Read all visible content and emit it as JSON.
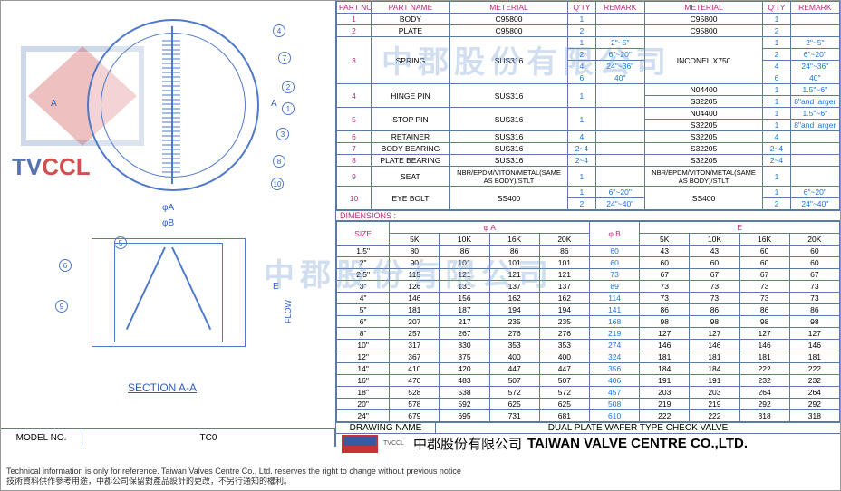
{
  "model": {
    "label": "MODEL NO.",
    "value": "TC0"
  },
  "drawing_name": {
    "label": "DRAWING NAME",
    "value": "DUAL PLATE WAFER TYPE CHECK VALVE"
  },
  "company": {
    "logo_sub": "TVCCL",
    "chinese": "中郡股份有限公司",
    "english": "TAIWAN VALVE CENTRE CO.,LTD."
  },
  "footnotes": {
    "en": "Technical information is only for reference. Taiwan Valves Centre Co., Ltd. reserves the right to change without previous notice",
    "zh": "技術資料供作參考用途，中郡公司保留對產品設計的更改，不另行通知的權利。"
  },
  "section_label": "SECTION A-A",
  "flow_label": "FLOW",
  "phiA": "φA",
  "phiB": "φB",
  "Alab": "A",
  "Elab": "E",
  "watermark": {
    "line1": "中郡股份有限公司",
    "brand_a": "TV",
    "brand_b": "CCL"
  },
  "parts_headers": {
    "part_no": "PART NO.",
    "part_name": "PART NAME",
    "material": "METERIAL",
    "qty": "Q'TY",
    "remark": "REMARK"
  },
  "parts": [
    {
      "no": "1",
      "name": "BODY",
      "m1": "C95800",
      "q1": "1",
      "r1": "",
      "m2": "C95800",
      "q2": "1",
      "r2": ""
    },
    {
      "no": "2",
      "name": "PLATE",
      "m1": "C95800",
      "q1": "2",
      "r1": "",
      "m2": "C95800",
      "q2": "2",
      "r2": ""
    }
  ],
  "spring": {
    "no": "3",
    "name": "SPRING",
    "m1": "SUS316",
    "m2": "INCONEL X750",
    "rows1": [
      {
        "q": "1",
        "r": "2\"~5\""
      },
      {
        "q": "2",
        "r": "6\"~20\""
      },
      {
        "q": "4",
        "r": "24\"~36\""
      },
      {
        "q": "6",
        "r": "40\""
      }
    ],
    "rows2": [
      {
        "q": "1",
        "r": "2\"~5\""
      },
      {
        "q": "2",
        "r": "6\"~20\""
      },
      {
        "q": "4",
        "r": "24\"~36\""
      },
      {
        "q": "6",
        "r": "40\""
      }
    ]
  },
  "hinge": {
    "no": "4",
    "name": "HINGE PIN",
    "m1": "SUS316",
    "q1": "1",
    "r1": "",
    "rows2": [
      {
        "m": "N04400",
        "q": "1",
        "r": "1.5\"~6\""
      },
      {
        "m": "S32205",
        "q": "1",
        "r": "8\"and larger"
      }
    ]
  },
  "stop": {
    "no": "5",
    "name": "STOP PIN",
    "m1": "SUS316",
    "q1": "1",
    "r1": "",
    "rows2": [
      {
        "m": "N04400",
        "q": "1",
        "r": "1.5\"~6\""
      },
      {
        "m": "S32205",
        "q": "1",
        "r": "8\"and larger"
      }
    ]
  },
  "simple": [
    {
      "no": "6",
      "name": "RETAINER",
      "m1": "SUS316",
      "q1": "4",
      "r1": "",
      "m2": "S32205",
      "q2": "4",
      "r2": ""
    },
    {
      "no": "7",
      "name": "BODY BEARING",
      "m1": "SUS316",
      "q1": "2~4",
      "r1": "",
      "m2": "S32205",
      "q2": "2~4",
      "r2": ""
    },
    {
      "no": "8",
      "name": "PLATE BEARING",
      "m1": "SUS316",
      "q1": "2~4",
      "r1": "",
      "m2": "S32205",
      "q2": "2~4",
      "r2": ""
    },
    {
      "no": "9",
      "name": "SEAT",
      "m1": "NBR/EPDM/VITON/METAL(SAME AS BODY)/STLT",
      "q1": "1",
      "r1": "",
      "m2": "NBR/EPDM/VITON/METAL(SAME AS BODY)/STLT",
      "q2": "1",
      "r2": ""
    }
  ],
  "eyebolt": {
    "no": "10",
    "name": "EYE BOLT",
    "m1": "SS400",
    "m2": "SS400",
    "rows": [
      {
        "q": "1",
        "r": "6\"~20\""
      },
      {
        "q": "2",
        "r": "24\"~40\""
      }
    ]
  },
  "dim_label": "DIMENSIONS :",
  "dim_headers": {
    "size": "SIZE",
    "phiA": "φ A",
    "phiB": "φ B",
    "E": "E",
    "k5": "5K",
    "k10": "10K",
    "k16": "16K",
    "k20": "20K"
  },
  "dims": [
    {
      "s": "1.5\"",
      "a": [
        "80",
        "86",
        "86",
        "86"
      ],
      "b": "60",
      "e": [
        "43",
        "43",
        "60",
        "60"
      ]
    },
    {
      "s": "2\"",
      "a": [
        "90",
        "101",
        "101",
        "101"
      ],
      "b": "60",
      "e": [
        "60",
        "60",
        "60",
        "60"
      ]
    },
    {
      "s": "2.5\"",
      "a": [
        "115",
        "121",
        "121",
        "121"
      ],
      "b": "73",
      "e": [
        "67",
        "67",
        "67",
        "67"
      ]
    },
    {
      "s": "3\"",
      "a": [
        "126",
        "131",
        "137",
        "137"
      ],
      "b": "89",
      "e": [
        "73",
        "73",
        "73",
        "73"
      ]
    },
    {
      "s": "4\"",
      "a": [
        "146",
        "156",
        "162",
        "162"
      ],
      "b": "114",
      "e": [
        "73",
        "73",
        "73",
        "73"
      ]
    },
    {
      "s": "5\"",
      "a": [
        "181",
        "187",
        "194",
        "194"
      ],
      "b": "141",
      "e": [
        "86",
        "86",
        "86",
        "86"
      ]
    },
    {
      "s": "6\"",
      "a": [
        "207",
        "217",
        "235",
        "235"
      ],
      "b": "168",
      "e": [
        "98",
        "98",
        "98",
        "98"
      ]
    },
    {
      "s": "8\"",
      "a": [
        "257",
        "267",
        "276",
        "276"
      ],
      "b": "219",
      "e": [
        "127",
        "127",
        "127",
        "127"
      ]
    },
    {
      "s": "10\"",
      "a": [
        "317",
        "330",
        "353",
        "353"
      ],
      "b": "274",
      "e": [
        "146",
        "146",
        "146",
        "146"
      ]
    },
    {
      "s": "12\"",
      "a": [
        "367",
        "375",
        "400",
        "400"
      ],
      "b": "324",
      "e": [
        "181",
        "181",
        "181",
        "181"
      ]
    },
    {
      "s": "14\"",
      "a": [
        "410",
        "420",
        "447",
        "447"
      ],
      "b": "356",
      "e": [
        "184",
        "184",
        "222",
        "222"
      ]
    },
    {
      "s": "16\"",
      "a": [
        "470",
        "483",
        "507",
        "507"
      ],
      "b": "406",
      "e": [
        "191",
        "191",
        "232",
        "232"
      ]
    },
    {
      "s": "18\"",
      "a": [
        "528",
        "538",
        "572",
        "572"
      ],
      "b": "457",
      "e": [
        "203",
        "203",
        "264",
        "264"
      ]
    },
    {
      "s": "20\"",
      "a": [
        "578",
        "592",
        "625",
        "625"
      ],
      "b": "508",
      "e": [
        "219",
        "219",
        "292",
        "292"
      ]
    },
    {
      "s": "24\"",
      "a": [
        "679",
        "695",
        "731",
        "681"
      ],
      "b": "610",
      "e": [
        "222",
        "222",
        "318",
        "318"
      ]
    }
  ],
  "callouts": [
    "1",
    "2",
    "3",
    "4",
    "5",
    "6",
    "7",
    "8",
    "9",
    "10"
  ],
  "colors": {
    "border": "#5b7aa8",
    "pink": "#b52b7a",
    "blue": "#1e73d4",
    "draw": "#4f79c9"
  }
}
